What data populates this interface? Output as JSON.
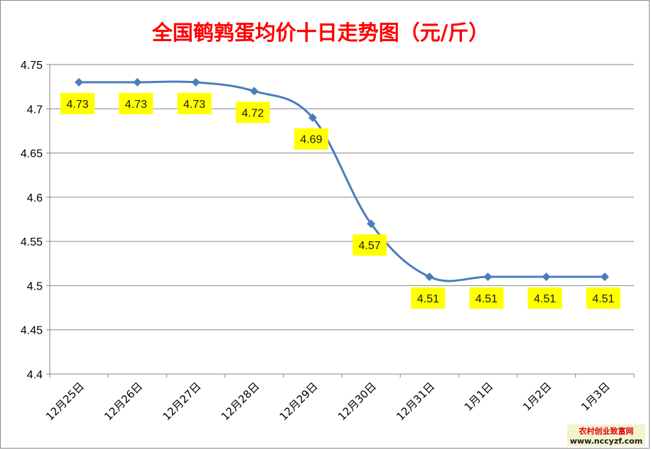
{
  "chart_data": {
    "type": "line",
    "title": "全国鹌鹑蛋均价十日走势图（元/斤）",
    "categories": [
      "12月25日",
      "12月26日",
      "12月27日",
      "12月28日",
      "12月29日",
      "12月30日",
      "12月31日",
      "1月1日",
      "1月2日",
      "1月3日"
    ],
    "series": [
      {
        "values": [
          4.73,
          4.73,
          4.73,
          4.72,
          4.69,
          4.57,
          4.51,
          4.51,
          4.51,
          4.51
        ],
        "color": "#4a7ebb"
      }
    ],
    "ylim": [
      4.4,
      4.75
    ],
    "yticks": [
      4.4,
      4.45,
      4.5,
      4.55,
      4.6,
      4.65,
      4.7,
      4.75
    ],
    "ytick_labels": [
      "4.4",
      "4.45",
      "4.5",
      "4.55",
      "4.6",
      "4.65",
      "4.7",
      "4.75"
    ],
    "data_labels": [
      "4.73",
      "4.73",
      "4.73",
      "4.72",
      "4.69",
      "4.57",
      "4.51",
      "4.51",
      "4.51",
      "4.51"
    ],
    "grid": true,
    "colors": {
      "title": "#ff0000",
      "line": "#4a7ebb",
      "label_bg": "#ffff00",
      "grid": "#868686"
    }
  },
  "watermark": {
    "line1": "农村创业致富网",
    "line2": "www.nccyzf.com"
  }
}
